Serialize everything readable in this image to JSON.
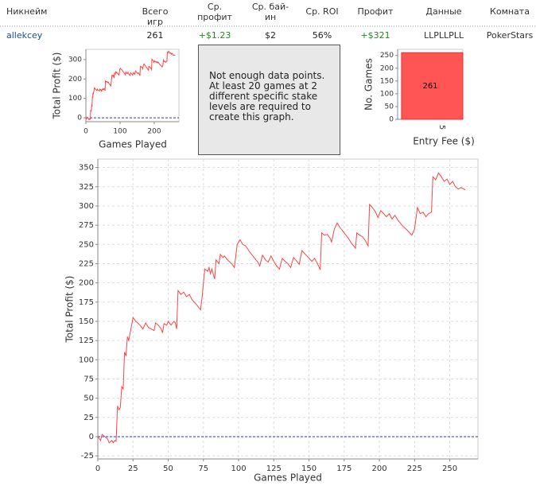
{
  "table": {
    "headers": [
      "Никнейм",
      "Всего игр",
      "Ср. профит",
      "Ср. бай-ин",
      "Ср. ROI",
      "Профит",
      "Данные",
      "Комната"
    ],
    "rows": [
      [
        "allekcey",
        "261",
        "+$1.23",
        "$2",
        "56%",
        "+$321",
        "LLPLLPLL",
        "PokerStars"
      ]
    ]
  },
  "notice": {
    "lines": [
      "Not enough data points.",
      "At least 20 games at 2",
      "different specific stake",
      "levels are required to",
      "create this graph."
    ]
  },
  "chart_data": [
    {
      "type": "line",
      "xlabel": "Games Played",
      "ylabel": "Total Profit ($)",
      "xlim": [
        0,
        272
      ],
      "ylim": [
        -20,
        353
      ],
      "xticks": [
        0,
        100,
        200
      ],
      "yticks": [
        0,
        100,
        200,
        300
      ],
      "color": "#ff4444",
      "grid": false,
      "zero_line": true
    },
    {
      "type": "bar",
      "xlabel": "Entry Fee ($)",
      "ylabel": "No. Games",
      "categories": [
        "5"
      ],
      "values": [
        261
      ],
      "color": "#ff5555",
      "ylim": [
        0,
        274
      ],
      "yticks": [
        0,
        50,
        100,
        150,
        200,
        250
      ],
      "grid": false
    },
    {
      "type": "line",
      "xlabel": "Games Played",
      "ylabel": "Total Profit ($)",
      "xlim": [
        0,
        270
      ],
      "ylim": [
        -29,
        361
      ],
      "xticks": [
        0,
        25,
        50,
        75,
        100,
        125,
        150,
        175,
        200,
        225,
        250
      ],
      "yticks": [
        -25,
        0,
        25,
        50,
        75,
        100,
        125,
        150,
        175,
        200,
        225,
        250,
        275,
        300,
        325,
        350
      ],
      "color": "#ff4444",
      "grid": true,
      "zero_line": true,
      "x": [
        0,
        2,
        3,
        5,
        7,
        8,
        10,
        11,
        12,
        13,
        14,
        15,
        16,
        17,
        18,
        19,
        20,
        21,
        22,
        23,
        25,
        27,
        30,
        32,
        34,
        36,
        38,
        40,
        41,
        43,
        45,
        46,
        47,
        49,
        50,
        52,
        54,
        55,
        56,
        57,
        59,
        61,
        63,
        65,
        67,
        70,
        73,
        74,
        76,
        78,
        79,
        80,
        81,
        83,
        84,
        86,
        87,
        89,
        90,
        92,
        95,
        97,
        99,
        101,
        103,
        105,
        108,
        111,
        114,
        115,
        117,
        119,
        121,
        123,
        125,
        127,
        129,
        131,
        133,
        135,
        137,
        139,
        141,
        143,
        145,
        147,
        150,
        152,
        154,
        156,
        158,
        159,
        161,
        163,
        165,
        166,
        168,
        170,
        172,
        175,
        178,
        180,
        183,
        184,
        186,
        188,
        190,
        192,
        193,
        195,
        197,
        199,
        201,
        203,
        205,
        207,
        209,
        211,
        213,
        216,
        220,
        223,
        225,
        227,
        229,
        231,
        233,
        235,
        237,
        238,
        240,
        242,
        244,
        246,
        248,
        250,
        252,
        254,
        256,
        258,
        261
      ],
      "values": [
        0,
        -5,
        3,
        0,
        -3,
        -8,
        -5,
        -8,
        -5,
        -6,
        40,
        35,
        38,
        65,
        62,
        110,
        105,
        130,
        125,
        135,
        155,
        150,
        145,
        140,
        148,
        142,
        140,
        138,
        148,
        145,
        140,
        135,
        147,
        145,
        150,
        145,
        150,
        148,
        140,
        190,
        185,
        188,
        182,
        185,
        178,
        172,
        165,
        180,
        218,
        215,
        220,
        212,
        218,
        205,
        230,
        225,
        237,
        233,
        235,
        230,
        225,
        220,
        250,
        256,
        250,
        248,
        240,
        233,
        226,
        222,
        236,
        230,
        227,
        235,
        228,
        222,
        218,
        232,
        228,
        225,
        220,
        233,
        229,
        224,
        242,
        238,
        232,
        228,
        232,
        225,
        217,
        265,
        262,
        263,
        258,
        253,
        270,
        278,
        272,
        265,
        258,
        252,
        245,
        265,
        262,
        260,
        255,
        248,
        302,
        298,
        293,
        285,
        294,
        290,
        286,
        290,
        283,
        288,
        282,
        275,
        268,
        262,
        270,
        298,
        290,
        292,
        286,
        290,
        292,
        338,
        334,
        343,
        338,
        332,
        335,
        328,
        332,
        325,
        322,
        324,
        321
      ]
    }
  ]
}
